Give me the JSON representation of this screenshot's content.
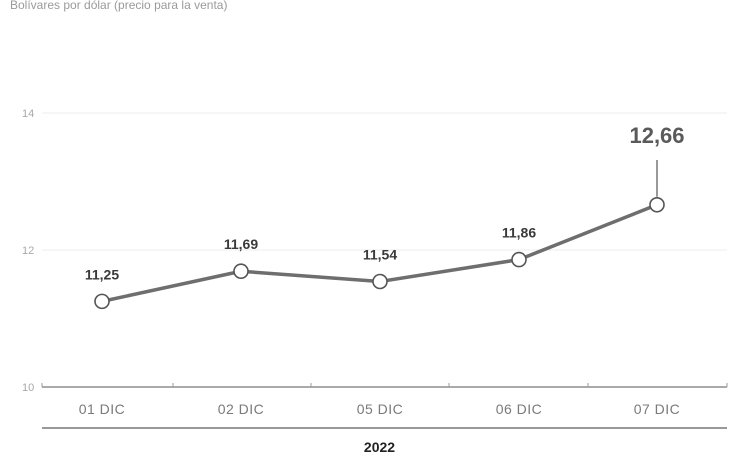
{
  "subtitle": "Bolívares por dólar (precio para la venta)",
  "chart_data": {
    "type": "line",
    "title": "",
    "subtitle": "Bolívares por dólar (precio para la venta)",
    "categories": [
      "01 DIC",
      "02 DIC",
      "05 DIC",
      "06 DIC",
      "07 DIC"
    ],
    "series": [
      {
        "values": [
          11.25,
          11.69,
          11.54,
          11.86,
          12.66
        ],
        "labels": [
          "11,25",
          "11,69",
          "11,54",
          "11,86",
          "12,66"
        ]
      }
    ],
    "ylim": [
      10,
      14
    ],
    "yticks": [
      10,
      12,
      14
    ],
    "ytick_labels": [
      "10",
      "12",
      "14"
    ],
    "xgroup_label": "2022",
    "grid": true,
    "legend": "none",
    "colors": {
      "line": "#6e6e6e",
      "marker_fill": "#ffffff",
      "grid": "#eeeeee",
      "axis": "#555555"
    }
  }
}
